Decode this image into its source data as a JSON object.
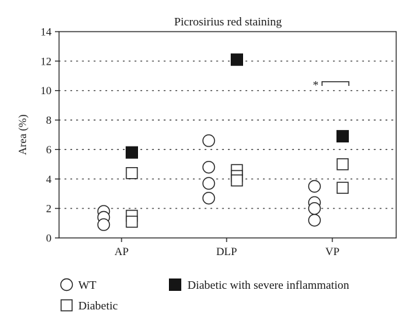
{
  "chart_data": {
    "type": "scatter",
    "title": "Picrosirius red staining",
    "xlabel": "",
    "ylabel": "Area (%)",
    "ylim": [
      0,
      14
    ],
    "yticks": [
      0,
      2,
      4,
      6,
      8,
      10,
      12,
      14
    ],
    "grid": "dotted-horizontal",
    "categories": [
      "AP",
      "DLP",
      "VP"
    ],
    "series": [
      {
        "name": "WT",
        "marker": "open-circle",
        "points": [
          {
            "category": "AP",
            "y": 1.8
          },
          {
            "category": "AP",
            "y": 1.4
          },
          {
            "category": "AP",
            "y": 0.9
          },
          {
            "category": "DLP",
            "y": 6.6
          },
          {
            "category": "DLP",
            "y": 4.8
          },
          {
            "category": "DLP",
            "y": 3.7
          },
          {
            "category": "DLP",
            "y": 2.7
          },
          {
            "category": "VP",
            "y": 3.5
          },
          {
            "category": "VP",
            "y": 2.4
          },
          {
            "category": "VP",
            "y": 2.0
          },
          {
            "category": "VP",
            "y": 1.2
          }
        ]
      },
      {
        "name": "Diabetic",
        "marker": "open-square",
        "points": [
          {
            "category": "AP",
            "y": 4.4
          },
          {
            "category": "AP",
            "y": 1.5
          },
          {
            "category": "AP",
            "y": 1.1
          },
          {
            "category": "DLP",
            "y": 4.6
          },
          {
            "category": "DLP",
            "y": 4.2
          },
          {
            "category": "DLP",
            "y": 3.9
          },
          {
            "category": "VP",
            "y": 5.0
          },
          {
            "category": "VP",
            "y": 3.4
          }
        ]
      },
      {
        "name": "Diabetic with severe inflammation",
        "marker": "filled-square",
        "points": [
          {
            "category": "AP",
            "y": 5.8
          },
          {
            "category": "DLP",
            "y": 12.1
          },
          {
            "category": "VP",
            "y": 6.9
          }
        ]
      }
    ],
    "annotations": [
      {
        "text": "*",
        "category": "VP",
        "y": 10.6,
        "type": "significance-bracket"
      }
    ],
    "legend": "bottom"
  }
}
